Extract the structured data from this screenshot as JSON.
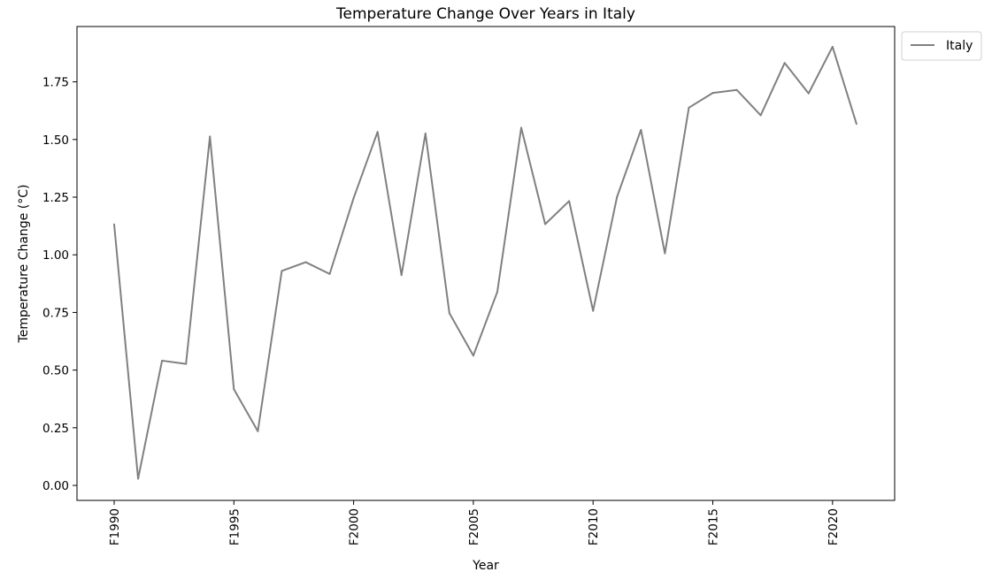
{
  "chart_data": {
    "type": "line",
    "title": "Temperature Change Over Years in Italy",
    "xlabel": "Year",
    "ylabel": "Temperature Change (°C)",
    "x": [
      "F1990",
      "F1991",
      "F1992",
      "F1993",
      "F1994",
      "F1995",
      "F1996",
      "F1997",
      "F1998",
      "F1999",
      "F2000",
      "F2001",
      "F2002",
      "F2003",
      "F2004",
      "F2005",
      "F2006",
      "F2007",
      "F2008",
      "F2009",
      "F2010",
      "F2011",
      "F2012",
      "F2013",
      "F2014",
      "F2015",
      "F2016",
      "F2017",
      "F2018",
      "F2019",
      "F2020",
      "F2021"
    ],
    "x_tick_labels": [
      "F1990",
      "F1995",
      "F2000",
      "F2005",
      "F2010",
      "F2015",
      "F2020"
    ],
    "ylim": [
      -0.065,
      1.99
    ],
    "y_ticks": [
      0.0,
      0.25,
      0.5,
      0.75,
      1.0,
      1.25,
      1.5,
      1.75
    ],
    "y_tick_labels": [
      "0.00",
      "0.25",
      "0.50",
      "0.75",
      "1.00",
      "1.25",
      "1.50",
      "1.75"
    ],
    "grid": false,
    "legend": {
      "placement": "outside-top-right"
    },
    "series": [
      {
        "name": "Italy",
        "color": "#808080",
        "values": [
          1.132,
          0.029,
          0.541,
          0.527,
          1.513,
          0.417,
          0.235,
          0.93,
          0.968,
          0.917,
          1.246,
          1.533,
          0.912,
          1.526,
          0.747,
          0.563,
          0.839,
          1.551,
          1.133,
          1.233,
          0.757,
          1.251,
          1.542,
          1.006,
          1.638,
          1.702,
          1.715,
          1.605,
          1.832,
          1.7,
          1.902,
          1.568
        ]
      }
    ]
  }
}
